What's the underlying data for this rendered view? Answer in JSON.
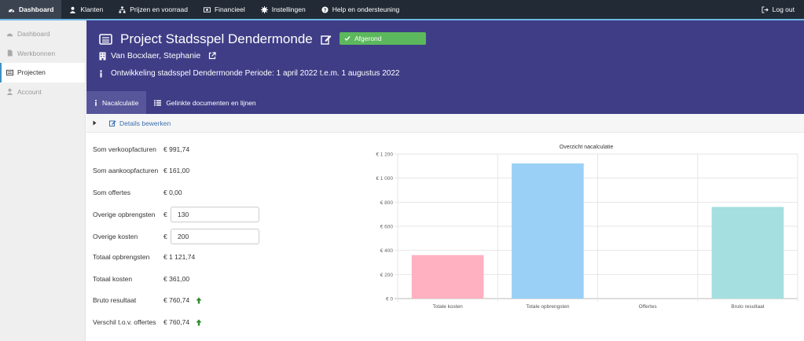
{
  "topnav": {
    "items": [
      {
        "label": "Dashboard",
        "icon": "dashboard-icon",
        "active": true
      },
      {
        "label": "Klanten",
        "icon": "user-icon"
      },
      {
        "label": "Prijzen en voorraad",
        "icon": "sitemap-icon"
      },
      {
        "label": "Financieel",
        "icon": "money-icon"
      },
      {
        "label": "Instellingen",
        "icon": "gear-icon"
      },
      {
        "label": "Help en ondersteuning",
        "icon": "help-icon"
      }
    ],
    "logout": "Log out"
  },
  "sidebar": {
    "items": [
      {
        "label": "Dashboard",
        "icon": "dashboard-icon"
      },
      {
        "label": "Werkbonnen",
        "icon": "file-icon"
      },
      {
        "label": "Projecten",
        "icon": "list-icon",
        "active": true
      },
      {
        "label": "Account",
        "icon": "user-icon"
      }
    ]
  },
  "header": {
    "title": "Project Stadsspel Dendermonde",
    "status": "Afgerond",
    "client": "Van Bocxlaer, Stephanie",
    "description": "Ontwikkeling stadsspel Dendermonde Periode: 1 april 2022 t.e.m. 1 augustus 2022"
  },
  "tabs": [
    {
      "label": "Nacalculatie",
      "icon": "info-icon",
      "active": true
    },
    {
      "label": "Gelinkte documenten en lijnen",
      "icon": "list-icon"
    }
  ],
  "details": {
    "link": "Details bewerken"
  },
  "financials": {
    "som_verkoop_label": "Som verkoopfacturen",
    "som_verkoop": "€ 991,74",
    "som_aankoop_label": "Som aankoopfacturen",
    "som_aankoop": "€ 161,00",
    "som_offertes_label": "Som offertes",
    "som_offertes": "€ 0,00",
    "overige_opbrengsten_label": "Overige opbrengsten",
    "overige_opbrengsten_value": "130",
    "overige_kosten_label": "Overige kosten",
    "overige_kosten_value": "200",
    "currency": "€",
    "totaal_opbrengsten_label": "Totaal opbrengsten",
    "totaal_opbrengsten": "€ 1 121,74",
    "totaal_kosten_label": "Totaal kosten",
    "totaal_kosten": "€ 361,00",
    "bruto_label": "Bruto resultaat",
    "bruto": "€ 760,74",
    "verschil_label": "Verschil t.o.v. offertes",
    "verschil": "€ 760,74"
  },
  "colors": {
    "topbar": "#222a35",
    "header": "#3f3d86",
    "status_green": "#5cb85c",
    "arrow_green": "#2e8b2e"
  },
  "chart_data": {
    "type": "bar",
    "title": "Overzicht nacalculatie",
    "categories": [
      "Totale kosten",
      "Totale opbrengsten",
      "Offertes",
      "Bruto resultaat"
    ],
    "values": [
      361,
      1121.74,
      0,
      760.74
    ],
    "colors": [
      "#ffb1c1",
      "#9ad0f5",
      "#ffe6aa",
      "#a5dfdf"
    ],
    "ylim": [
      0,
      1200
    ],
    "yticks": [
      "€ 0",
      "€ 200",
      "€ 400",
      "€ 600",
      "€ 800",
      "€ 1 000",
      "€ 1 200"
    ],
    "grid": true
  }
}
